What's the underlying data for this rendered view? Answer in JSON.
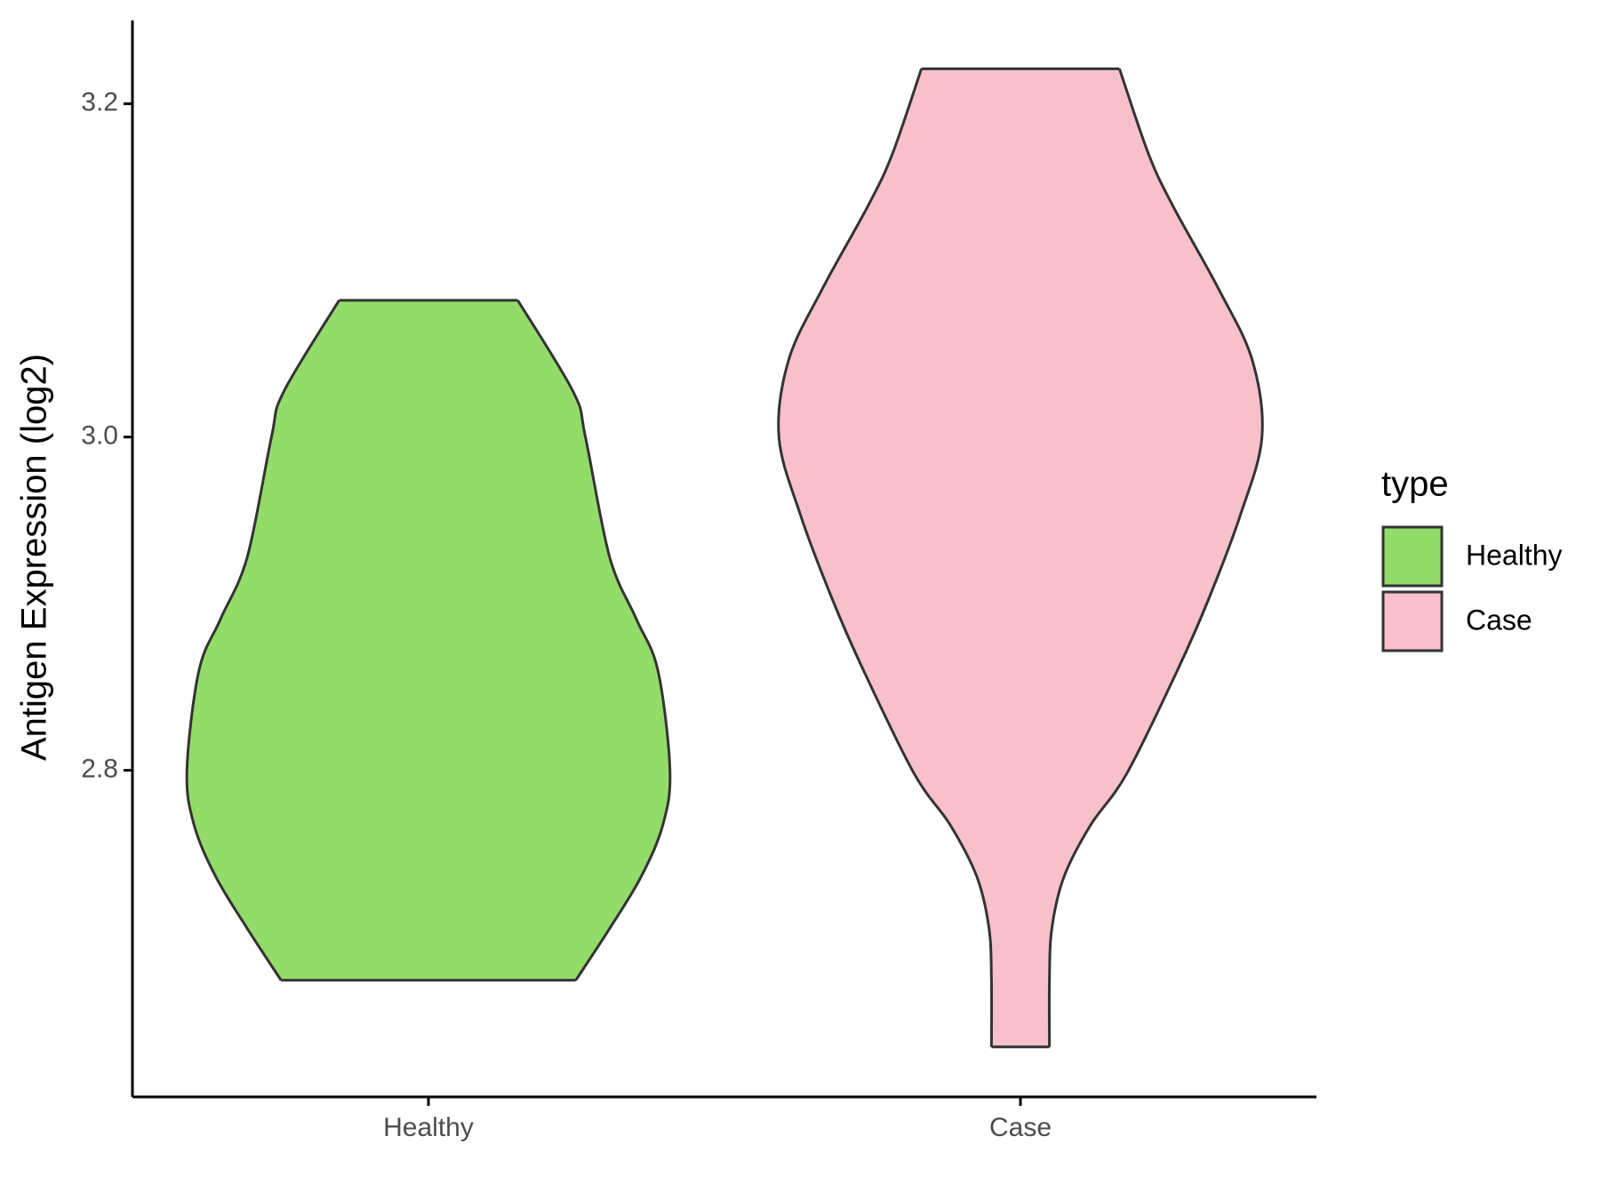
{
  "chart_data": {
    "type": "violin",
    "ylabel": "Antigen Expression (log2)",
    "categories": [
      "Healthy",
      "Case"
    ],
    "legend_title": "type",
    "legend": "right",
    "ylim": [
      2.604,
      3.25
    ],
    "yticks": [
      {
        "value": 2.8,
        "label": "2.8"
      },
      {
        "value": 3.0,
        "label": "3.0"
      },
      {
        "value": 3.2,
        "label": "3.2"
      }
    ],
    "series": [
      {
        "name": "Healthy",
        "color": "#93dc6a",
        "y": [
          3.082,
          3.027,
          3.0,
          2.928,
          2.891,
          2.86,
          2.8,
          2.767,
          2.736,
          2.705,
          2.674
        ],
        "density": [
          0.37,
          0.6,
          0.65,
          0.75,
          0.86,
          0.95,
          1.0,
          0.97,
          0.88,
          0.75,
          0.61
        ]
      },
      {
        "name": "Case",
        "color": "#f7c0cb",
        "y": [
          3.221,
          3.17,
          3.139,
          3.089,
          3.046,
          3.0,
          2.953,
          2.903,
          2.86,
          2.798,
          2.767,
          2.736,
          2.705,
          2.674,
          2.634
        ],
        "density": [
          0.41,
          0.53,
          0.63,
          0.82,
          0.96,
          1.0,
          0.91,
          0.78,
          0.65,
          0.44,
          0.29,
          0.18,
          0.13,
          0.12,
          0.12
        ]
      }
    ]
  }
}
